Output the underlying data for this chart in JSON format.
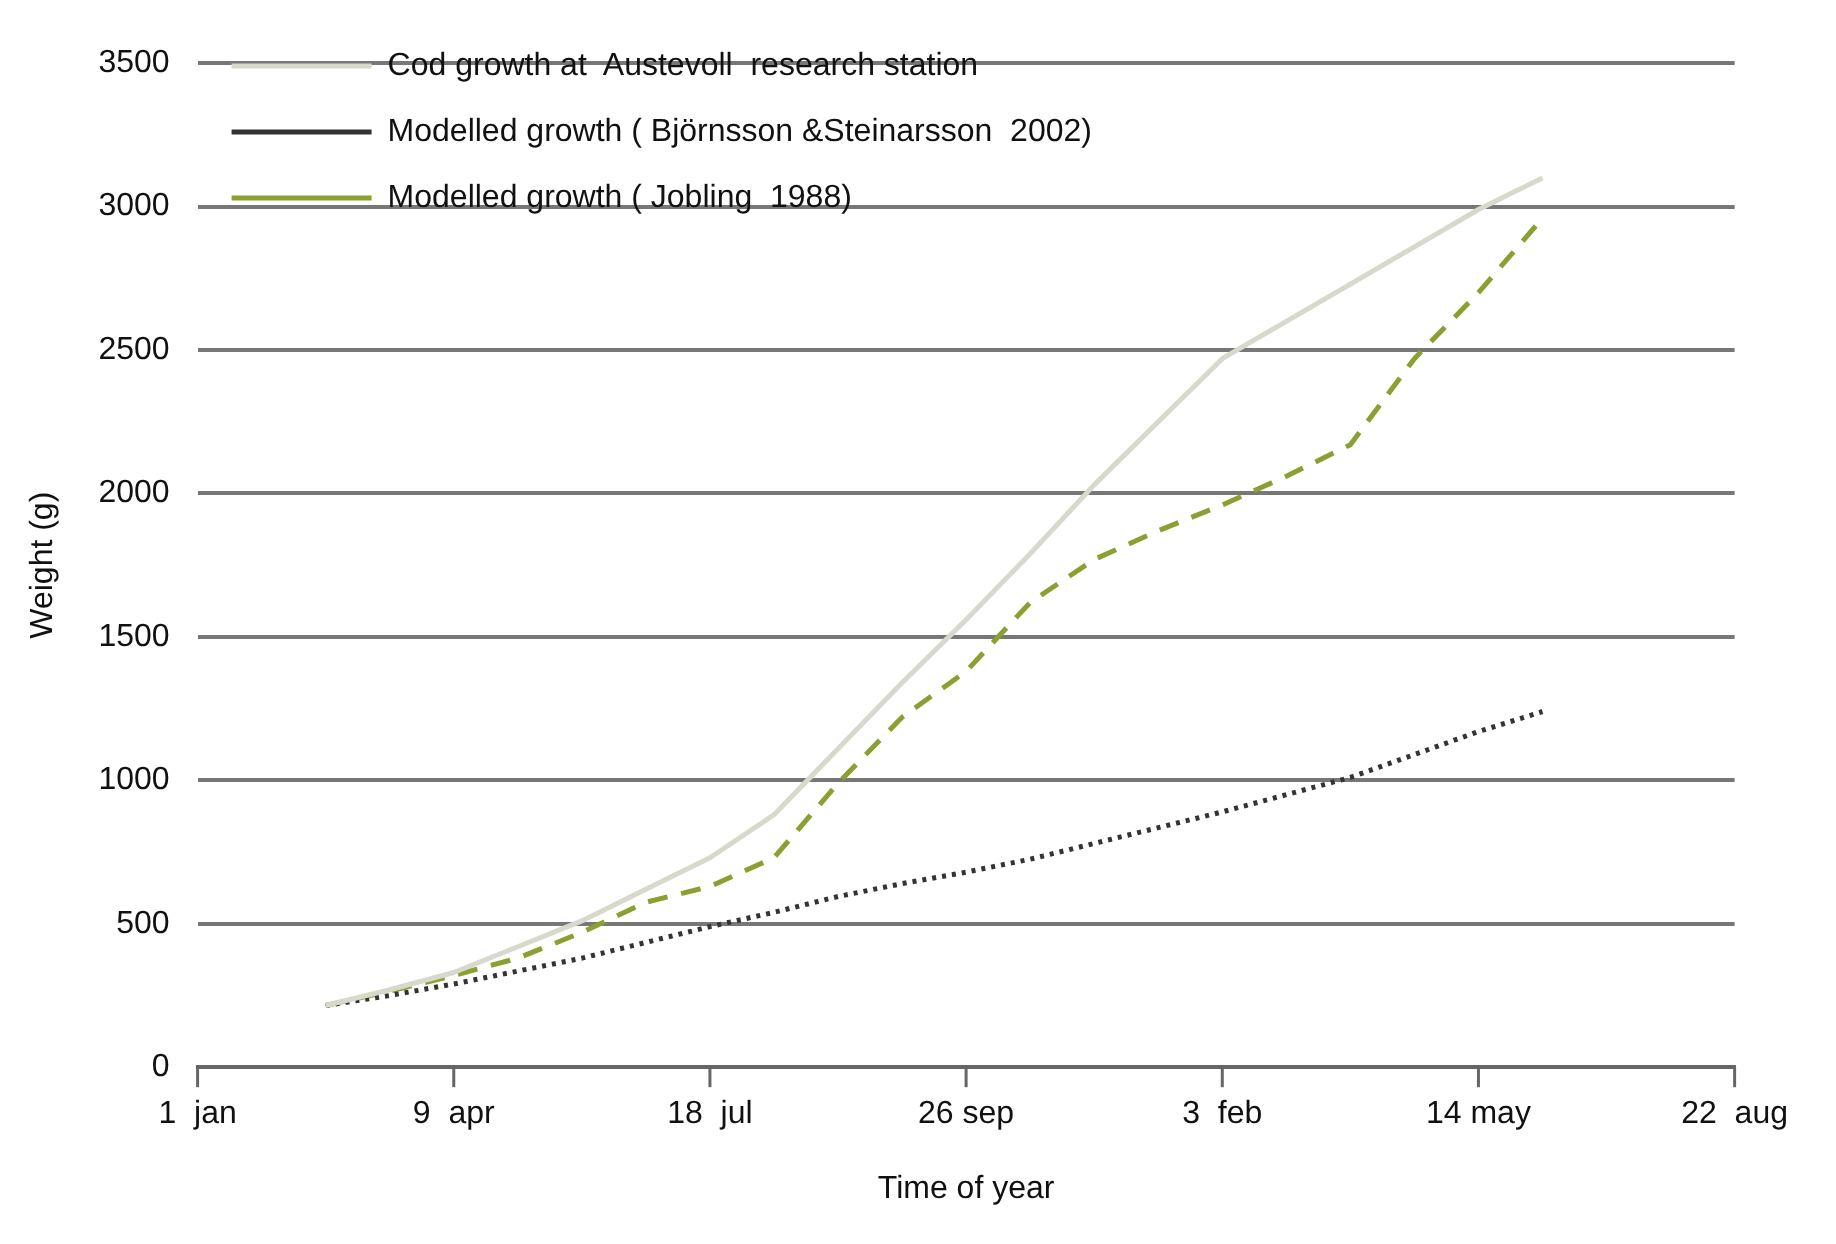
{
  "chart_data": {
    "type": "line",
    "xlabel": "Time of year",
    "ylabel": "Weight (g)",
    "categories": [
      "1  jan",
      null,
      null,
      null,
      "9  apr",
      null,
      null,
      null,
      "18  jul",
      null,
      null,
      null,
      "26 sep",
      null,
      null,
      null,
      "3  feb",
      null,
      null,
      null,
      "14 may",
      null,
      null,
      null,
      "22  aug"
    ],
    "ylim": [
      0,
      3500
    ],
    "yticks": [
      0,
      500,
      1000,
      1500,
      2000,
      2500,
      3000,
      3500
    ],
    "grid": "y",
    "legend": "top left",
    "marker": "none",
    "series": [
      {
        "name": "Cod growth at  Austevoll  research station",
        "color": "#d8d8cc",
        "line_style": "solid",
        "values": [
          null,
          null,
          215,
          270,
          330,
          420,
          510,
          620,
          730,
          880,
          1110,
          1340,
          1560,
          1790,
          2030,
          2250,
          2470,
          2600,
          2730,
          2860,
          2990,
          3100,
          null,
          null,
          null
        ]
      },
      {
        "name": "Modelled growth ( Björnsson &Steinarsson  2002)",
        "color": "#333333",
        "line_style": "dotted",
        "values": [
          null,
          null,
          215,
          250,
          290,
          335,
          380,
          435,
          490,
          540,
          595,
          640,
          680,
          725,
          780,
          835,
          890,
          950,
          1010,
          1090,
          1170,
          1240,
          null,
          null,
          null
        ]
      },
      {
        "name": "Modelled growth ( Jobling  1988)",
        "color": "#8aa030",
        "line_style": "dashed",
        "values": [
          null,
          null,
          215,
          265,
          320,
          380,
          470,
          575,
          630,
          730,
          990,
          1220,
          1380,
          1620,
          1770,
          1870,
          1960,
          2060,
          2170,
          2470,
          2700,
          2960,
          null,
          null,
          null
        ]
      }
    ]
  }
}
